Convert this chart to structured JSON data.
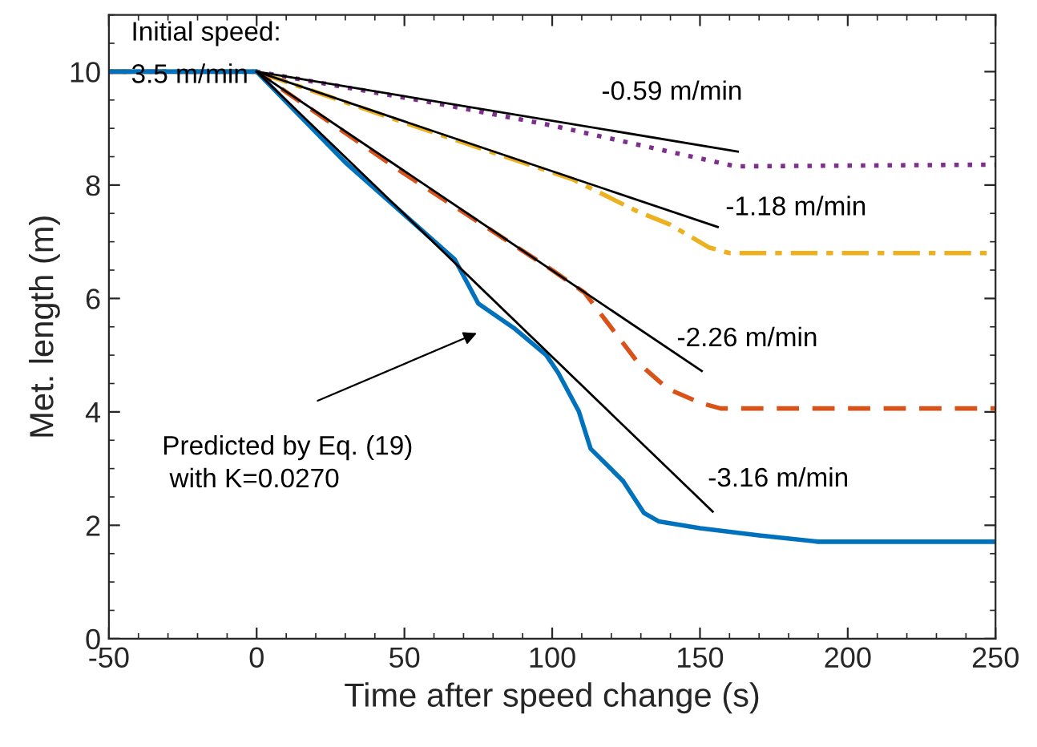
{
  "chart_data": {
    "type": "line",
    "xlabel": "Time after speed change (s)",
    "ylabel": "Met. length (m)",
    "xlim": [
      -50,
      250
    ],
    "xticks": [
      -50,
      0,
      50,
      100,
      150,
      200,
      250
    ],
    "ylim": [
      0,
      11
    ],
    "yticks": [
      0,
      2,
      4,
      6,
      8,
      10
    ],
    "grid": false,
    "legend": false,
    "marker": "none",
    "series": [
      {
        "color": "#7e2f8e",
        "line_style": "dotted",
        "x": [
          -50,
          0,
          60,
          100,
          130,
          150,
          162,
          250
        ],
        "values": [
          10,
          10,
          9.45,
          9.05,
          8.7,
          8.47,
          8.33,
          8.36
        ]
      },
      {
        "color": "#edb120",
        "line_style": "dashdot",
        "x": [
          -50,
          0,
          50,
          107,
          129,
          140,
          153,
          160,
          250
        ],
        "values": [
          10,
          10,
          9.1,
          8.1,
          7.53,
          7.3,
          6.9,
          6.8,
          6.8
        ]
      },
      {
        "color": "#d95319",
        "line_style": "dashed",
        "x": [
          -50,
          0,
          50,
          100,
          111,
          118,
          129,
          139,
          150,
          157,
          250
        ],
        "values": [
          10,
          10,
          8.2,
          6.5,
          6.1,
          5.62,
          4.87,
          4.41,
          4.16,
          4.06,
          4.06
        ]
      },
      {
        "color": "#0072bd",
        "line_style": "solid",
        "x": [
          -50,
          0,
          30,
          67,
          75,
          87,
          98,
          102,
          109,
          113,
          124,
          131,
          136,
          150,
          170,
          190,
          250
        ],
        "values": [
          10,
          10,
          8.4,
          6.69,
          5.91,
          5.48,
          5.0,
          4.69,
          4.01,
          3.35,
          2.78,
          2.22,
          2.07,
          1.95,
          1.82,
          1.71,
          1.71
        ]
      },
      {
        "color": "#000000",
        "line_style": "solid",
        "x": [
          0,
          162.8
        ],
        "values": [
          10,
          8.59
        ]
      },
      {
        "color": "#000000",
        "line_style": "solid",
        "x": [
          0,
          156
        ],
        "values": [
          10,
          7.26
        ]
      },
      {
        "color": "#000000",
        "line_style": "solid",
        "x": [
          0,
          150.6
        ],
        "values": [
          10,
          4.72
        ]
      },
      {
        "color": "#000000",
        "line_style": "solid",
        "x": [
          0,
          154.3
        ],
        "values": [
          10,
          2.24
        ]
      }
    ],
    "annotations": [
      "Initial speed:\n3.5 m/min",
      "-0.59 m/min",
      "-1.18 m/min",
      "-2.26 m/min",
      "-3.16 m/min",
      "Predicted by Eq. (19)\n with K=0.0270"
    ]
  }
}
